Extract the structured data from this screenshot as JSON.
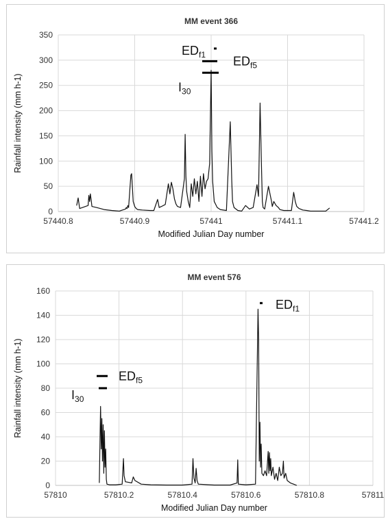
{
  "chart_data": [
    {
      "type": "line",
      "title": "MM event 366",
      "xlabel": "Modified Julian Day number",
      "ylabel": "Rainfall intensity (mm h-1)",
      "xlim": [
        57440.8,
        57441.2
      ],
      "ylim": [
        0,
        350
      ],
      "xticks": [
        57440.8,
        57440.9,
        57441,
        57441.1,
        57441.2
      ],
      "xtick_labels": [
        "57440.8",
        "57440.9",
        "57441",
        "57441.1",
        "57441.2"
      ],
      "yticks": [
        0,
        50,
        100,
        150,
        200,
        250,
        300,
        350
      ],
      "ytick_labels": [
        "0",
        "50",
        "100",
        "150",
        "200",
        "250",
        "300",
        "350"
      ],
      "grid": true,
      "series": [
        {
          "x": [
            57440.824,
            57440.826,
            57440.828,
            57440.839,
            57440.84,
            57440.841,
            57440.842,
            57440.843,
            57440.844,
            57440.85,
            57440.86,
            57440.87,
            57440.88,
            57440.888,
            57440.889,
            57440.89,
            57440.891,
            57440.892,
            57440.895,
            57440.896,
            57440.898,
            57440.9,
            57440.901,
            57440.902,
            57440.904,
            57440.91,
            57440.92,
            57440.925,
            57440.93,
            57440.932,
            57440.935,
            57440.94,
            57440.944,
            57440.946,
            57440.948,
            57440.95,
            57440.952,
            57440.954,
            57440.956,
            57440.96,
            57440.965,
            57440.966,
            57440.967,
            57440.968,
            57440.97,
            57440.972,
            57440.974,
            57440.976,
            57440.978,
            57440.98,
            57440.982,
            57440.984,
            57440.986,
            57440.988,
            57440.99,
            57440.992,
            57440.994,
            57440.996,
            57440.998,
            57441.0,
            57441.001,
            57441.002,
            57441.004,
            57441.008,
            57441.012,
            57441.02,
            57441.025,
            57441.027,
            57441.028,
            57441.03,
            57441.035,
            57441.04,
            57441.045,
            57441.05,
            57441.055,
            57441.06,
            57441.062,
            57441.064,
            57441.066,
            57441.067,
            57441.068,
            57441.07,
            57441.075,
            57441.079,
            57441.08,
            57441.082,
            57441.085,
            57441.088,
            57441.09,
            57441.095,
            57441.1,
            57441.105,
            57441.108,
            57441.109,
            57441.11,
            57441.112,
            57441.115,
            57441.12,
            57441.125,
            57441.13,
            57441.135,
            57441.14,
            57441.145,
            57441.15,
            57441.155
          ],
          "y": [
            12,
            27,
            6,
            12,
            32,
            20,
            35,
            24,
            10,
            8,
            4,
            2,
            1,
            5,
            8,
            6,
            12,
            8,
            72,
            75,
            20,
            10,
            8,
            6,
            4,
            3,
            2,
            2,
            24,
            8,
            10,
            14,
            55,
            35,
            58,
            45,
            25,
            15,
            10,
            8,
            65,
            153,
            70,
            40,
            20,
            8,
            55,
            30,
            65,
            35,
            60,
            20,
            70,
            30,
            75,
            45,
            60,
            65,
            95,
            280,
            120,
            60,
            20,
            8,
            4,
            2,
            178,
            60,
            20,
            8,
            2,
            1,
            12,
            5,
            8,
            53,
            30,
            215,
            80,
            20,
            8,
            5,
            50,
            20,
            10,
            20,
            12,
            8,
            4,
            2,
            2,
            2,
            38,
            30,
            20,
            10,
            6,
            3,
            2,
            1,
            1,
            1,
            1,
            1,
            7
          ]
        }
      ],
      "annotations": [
        {
          "main": "ED",
          "sub": "f1",
          "value": 323
        },
        {
          "main": "ED",
          "sub": "f5",
          "value": 298
        },
        {
          "main": "I",
          "sub": "30",
          "value": 275
        }
      ]
    },
    {
      "type": "line",
      "title": "MM event 576",
      "xlabel": "Modified Julian Day number",
      "ylabel": "Rainfall intensity (mm h-1)",
      "xlim": [
        57810,
        57811
      ],
      "ylim": [
        0,
        160
      ],
      "xticks": [
        57810,
        57810.2,
        57810.4,
        57810.6,
        57810.8,
        57811
      ],
      "xtick_labels": [
        "57810",
        "57810.2",
        "57810.4",
        "57810.6",
        "57810.8",
        "57811"
      ],
      "yticks": [
        0,
        20,
        40,
        60,
        80,
        100,
        120,
        140,
        160
      ],
      "ytick_labels": [
        "0",
        "20",
        "40",
        "60",
        "80",
        "100",
        "120",
        "140",
        "160"
      ],
      "grid": true,
      "series": [
        {
          "x": [
            57810.138,
            57810.14,
            57810.142,
            57810.144,
            57810.146,
            57810.148,
            57810.15,
            57810.152,
            57810.154,
            57810.156,
            57810.158,
            57810.16,
            57810.162,
            57810.17,
            57810.18,
            57810.19,
            57810.21,
            57810.214,
            57810.216,
            57810.22,
            57810.24,
            57810.245,
            57810.25,
            57810.27,
            57810.3,
            57810.35,
            57810.4,
            57810.43,
            57810.433,
            57810.436,
            57810.44,
            57810.443,
            57810.446,
            57810.45,
            57810.5,
            57810.55,
            57810.572,
            57810.574,
            57810.576,
            57810.6,
            57810.63,
            57810.638,
            57810.64,
            57810.642,
            57810.644,
            57810.646,
            57810.648,
            57810.65,
            57810.655,
            57810.66,
            57810.665,
            57810.67,
            57810.672,
            57810.674,
            57810.676,
            57810.678,
            57810.68,
            57810.685,
            57810.69,
            57810.695,
            57810.7,
            57810.705,
            57810.71,
            57810.715,
            57810.718,
            57810.72,
            57810.725,
            57810.73,
            57810.74,
            57810.75,
            57810.76
          ],
          "y": [
            2,
            35,
            65,
            30,
            55,
            20,
            50,
            10,
            45,
            15,
            30,
            5,
            1,
            0.5,
            0.5,
            0.5,
            1,
            22,
            8,
            3,
            2,
            7,
            4,
            1,
            0.5,
            0.3,
            0.3,
            1,
            22,
            6,
            2,
            14,
            4,
            1,
            0.3,
            0.3,
            2,
            21,
            1,
            0.5,
            1,
            145,
            120,
            20,
            52,
            15,
            34,
            10,
            8,
            12,
            8,
            28,
            10,
            27,
            12,
            22,
            8,
            15,
            5,
            10,
            4,
            15,
            8,
            10,
            20,
            6,
            10,
            4,
            2,
            1,
            0
          ]
        }
      ],
      "annotations": [
        {
          "main": "ED",
          "sub": "f1",
          "value": 150
        },
        {
          "main": "ED",
          "sub": "f5",
          "value": 90
        },
        {
          "main": "I",
          "sub": "30",
          "value": 80
        }
      ]
    }
  ]
}
